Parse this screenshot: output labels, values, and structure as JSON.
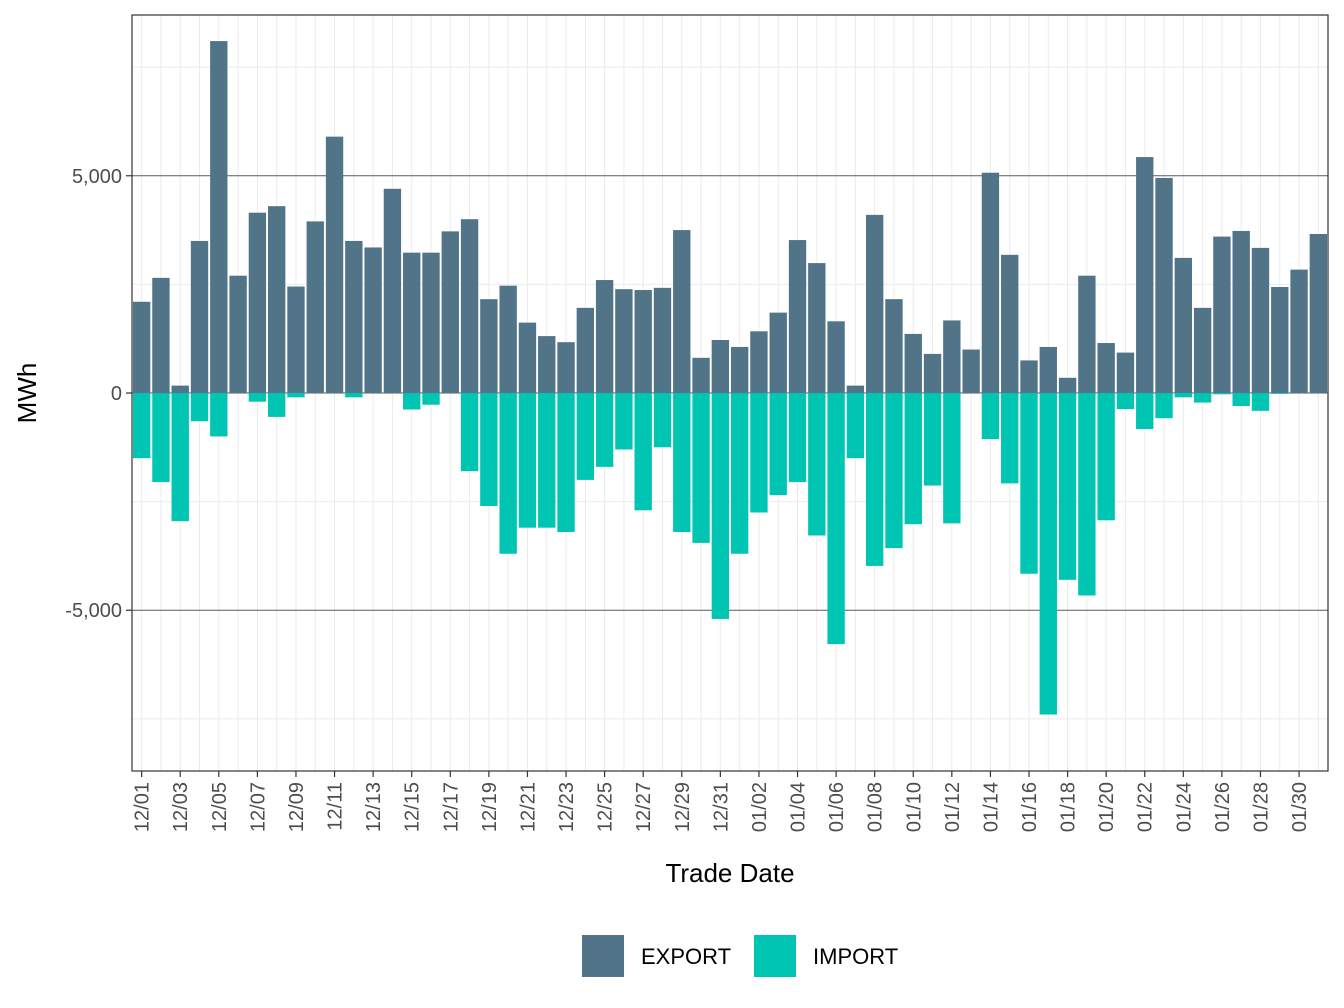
{
  "chart_data": {
    "type": "bar",
    "title": "",
    "xlabel": "Trade Date",
    "ylabel": "MWh",
    "ylim": [
      -8700,
      8700
    ],
    "y_ticks": [
      -5000,
      0,
      5000
    ],
    "y_tick_labels": [
      "-5,000",
      "0",
      "5,000"
    ],
    "grid": true,
    "legend_position": "bottom",
    "categories": [
      "12/01",
      "12/02",
      "12/03",
      "12/04",
      "12/05",
      "12/06",
      "12/07",
      "12/08",
      "12/09",
      "12/10",
      "12/11",
      "12/12",
      "12/13",
      "12/14",
      "12/15",
      "12/16",
      "12/17",
      "12/18",
      "12/19",
      "12/20",
      "12/21",
      "12/22",
      "12/23",
      "12/24",
      "12/25",
      "12/26",
      "12/27",
      "12/28",
      "12/29",
      "12/30",
      "12/31",
      "01/01",
      "01/02",
      "01/03",
      "01/04",
      "01/05",
      "01/06",
      "01/07",
      "01/08",
      "01/09",
      "01/10",
      "01/11",
      "01/12",
      "01/13",
      "01/14",
      "01/15",
      "01/16",
      "01/17",
      "01/18",
      "01/19",
      "01/20",
      "01/21",
      "01/22",
      "01/23",
      "01/24",
      "01/25",
      "01/26",
      "01/27",
      "01/28",
      "01/29",
      "01/30",
      "01/31"
    ],
    "tick_labels": [
      "12/01",
      "12/03",
      "12/05",
      "12/07",
      "12/09",
      "12/11",
      "12/13",
      "12/15",
      "12/17",
      "12/19",
      "12/21",
      "12/23",
      "12/25",
      "12/27",
      "12/29",
      "12/31",
      "01/02",
      "01/04",
      "01/06",
      "01/08",
      "01/10",
      "01/12",
      "01/14",
      "01/16",
      "01/18",
      "01/20",
      "01/22",
      "01/24",
      "01/26",
      "01/28",
      "01/30"
    ],
    "series": [
      {
        "name": "EXPORT",
        "color": "#527489",
        "values": [
          2100,
          2650,
          170,
          3500,
          8100,
          2700,
          4150,
          4300,
          2450,
          3950,
          5900,
          3500,
          3350,
          4700,
          3230,
          3230,
          3720,
          4000,
          2160,
          2470,
          1620,
          1310,
          1170,
          1960,
          2600,
          2390,
          2370,
          2420,
          3750,
          810,
          1220,
          1060,
          1420,
          1850,
          3520,
          2990,
          1650,
          170,
          4100,
          2160,
          1360,
          900,
          1670,
          1000,
          5070,
          3180,
          750,
          1060,
          350,
          2700,
          1150,
          930,
          5430,
          4950,
          3110,
          1960,
          3600,
          3730,
          3340,
          2440,
          2840,
          3660
        ]
      },
      {
        "name": "IMPORT",
        "color": "#00C5B2",
        "values": [
          -1500,
          -2050,
          -2950,
          -650,
          -1000,
          0,
          -200,
          -550,
          -100,
          0,
          0,
          -100,
          0,
          0,
          -380,
          -270,
          0,
          -1800,
          -2600,
          -3700,
          -3100,
          -3100,
          -3200,
          -2000,
          -1700,
          -1300,
          -2700,
          -1250,
          -3200,
          -3450,
          -5200,
          -3700,
          -2750,
          -2350,
          -2050,
          -3280,
          -5780,
          -1500,
          -3980,
          -3570,
          -3020,
          -2130,
          -3000,
          0,
          -1060,
          -2080,
          -4160,
          -7400,
          -4300,
          -4660,
          -2930,
          -370,
          -830,
          -580,
          -100,
          -220,
          -30,
          -300,
          -410,
          -20,
          0,
          0
        ]
      }
    ]
  }
}
